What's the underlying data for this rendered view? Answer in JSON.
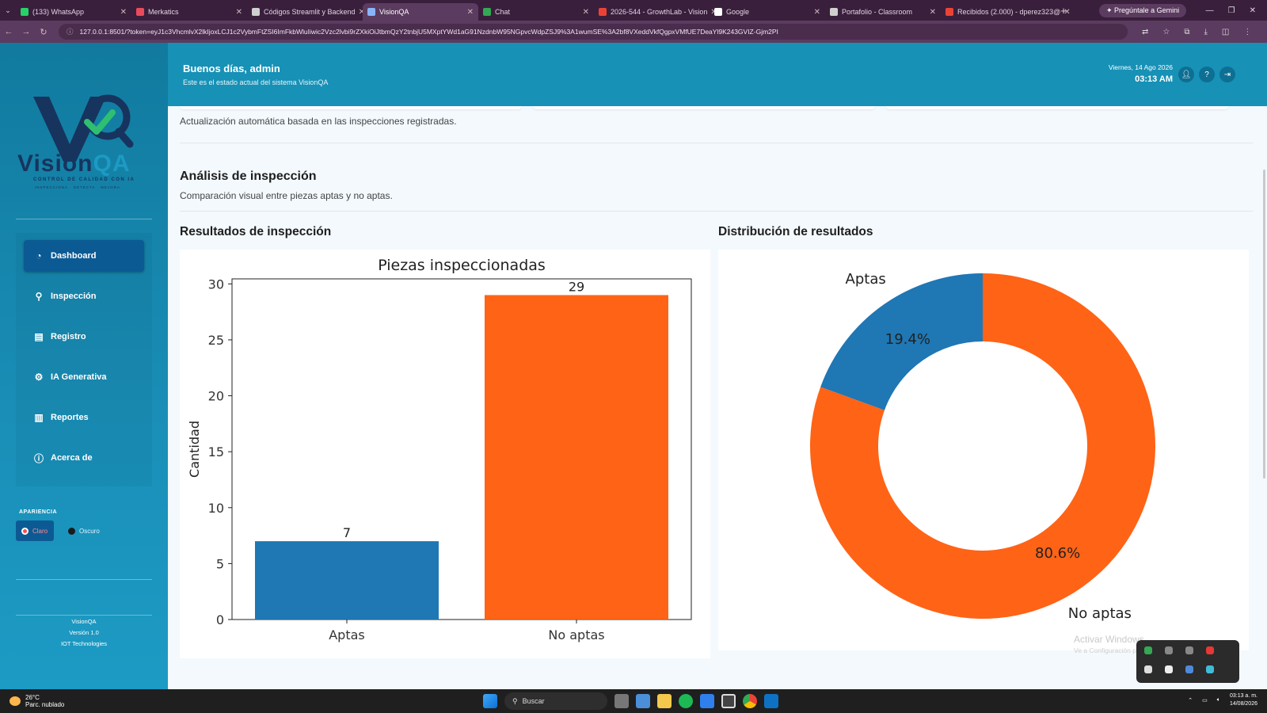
{
  "browser": {
    "tabs": [
      {
        "label": "(133) WhatsApp",
        "color": "#25d366"
      },
      {
        "label": "Merkatics",
        "color": "#e94b5a"
      },
      {
        "label": "Códigos Streamlit y Backend",
        "color": "#cfcfcf"
      },
      {
        "label": "VisionQA",
        "color": "#8ab4f8",
        "active": true
      },
      {
        "label": "Chat",
        "color": "#34a853"
      },
      {
        "label": "2026-544 - GrowthLab - Vision",
        "color": "#ea4335"
      },
      {
        "label": "Google",
        "color": "#ffffff"
      },
      {
        "label": "Portafolio - Classroom",
        "color": "#cfcfcf"
      },
      {
        "label": "Recibidos (2.000) - dperez323@",
        "color": "#ea4335"
      }
    ],
    "gemini_label": "Pregúntale a Gemini",
    "url": "127.0.0.1:8501/?token=eyJ1c3VhcmlvX2lkIjoxLCJ1c2VybmFtZSI6ImFkbWluIiwic2Vzc2lvbi9rZXkiOiJtbmQzY2tnbjU5MXptYWd1aG91NzdnbW95NGpvcWdpZSJ9%3A1wumSE%3A2bf8VXeddVkfQgpxVMfUE7DeaYl9K243GVIZ-Gjm2PI"
  },
  "sidebar": {
    "brand": {
      "vision": "Vision",
      "qa": "QA",
      "tagline": "CONTROL DE CALIDAD CON IA",
      "subtagline": "INSPECCIONA  ·  DETECTA  ·  MEJORA"
    },
    "items": [
      {
        "label": "Dashboard",
        "icon": "dashboard-icon",
        "glyph": "◔",
        "active": true
      },
      {
        "label": "Inspección",
        "icon": "search-icon",
        "glyph": "⚲"
      },
      {
        "label": "Registro",
        "icon": "clipboard-icon",
        "glyph": "▤"
      },
      {
        "label": "IA Generativa",
        "icon": "gear-icon",
        "glyph": "⚙"
      },
      {
        "label": "Reportes",
        "icon": "report-icon",
        "glyph": "▥"
      },
      {
        "label": "Acerca de",
        "icon": "info-icon",
        "glyph": "ⓘ"
      }
    ],
    "appearance_title": "APARIENCIA",
    "theme_light": "Claro",
    "theme_dark": "Oscuro",
    "footer": {
      "app": "VisionQA",
      "version": "Versión 1.0",
      "company": "IOT Technologies"
    }
  },
  "header": {
    "greeting": "Buenos días, admin",
    "subtitle": "Este es el estado actual del sistema VisionQA",
    "date": "Viernes, 14 Ago 2026",
    "time": "03:13 AM"
  },
  "main": {
    "auto_note": "Actualización automática basada en las inspecciones registradas.",
    "analysis_title": "Análisis de inspección",
    "analysis_subtitle": "Comparación visual entre piezas aptas y no aptas.",
    "bar_section_title": "Resultados de inspección",
    "pie_section_title": "Distribución de resultados"
  },
  "chart_data": [
    {
      "type": "bar",
      "title": "Piezas inspeccionadas",
      "categories": [
        "Aptas",
        "No aptas"
      ],
      "values": [
        7,
        29
      ],
      "colors": [
        "#1f77b4",
        "#ff6316"
      ],
      "xlabel": "",
      "ylabel": "Cantidad",
      "ylim": [
        0,
        30.45
      ],
      "yticks": [
        0,
        5,
        10,
        15,
        20,
        25,
        30
      ],
      "grid": false
    },
    {
      "type": "pie",
      "donut": true,
      "labels": [
        "Aptas",
        "No aptas"
      ],
      "values": [
        7,
        29
      ],
      "percent_labels": [
        "19.4%",
        "80.6%"
      ],
      "colors": [
        "#1f77b4",
        "#ff6316"
      ]
    }
  ],
  "overlay": {
    "watermark_title": "Activar Windows",
    "watermark_sub": "Ve a Configuración para activar Windows."
  },
  "taskbar": {
    "temperature": "26°C",
    "weather": "Parc. nublado",
    "search_label": "Buscar",
    "clock_time": "03:13 a. m.",
    "clock_date": "14/08/2026"
  }
}
